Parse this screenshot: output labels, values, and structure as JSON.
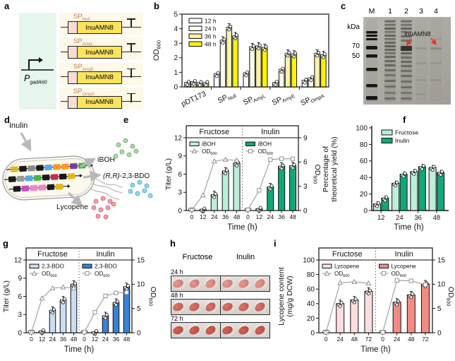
{
  "figure": {
    "panels": {
      "a": "a",
      "b": "b",
      "c": "c",
      "d": "d",
      "e": "e",
      "f": "f",
      "g": "g",
      "h": "h",
      "i": "i"
    }
  },
  "panel_a": {
    "promoter_main": "P",
    "promoter_sub": "gadA60",
    "sp_main": "SP",
    "gene_label": "InuAMN8",
    "constructs": [
      {
        "sp_sub": "Null"
      },
      {
        "sp_sub": "AmyL"
      },
      {
        "sp_sub": "AmyE"
      },
      {
        "sp_sub": "OmpA"
      }
    ]
  },
  "panel_c": {
    "kda_label": "kDa",
    "lane_labels": [
      "M",
      "1",
      "2",
      "3",
      "4"
    ],
    "marker_labels": [
      {
        "text": "70"
      },
      {
        "text": "50"
      }
    ],
    "annotation": "InuAMN8",
    "annotation_color": "#e8332a",
    "gel": {
      "lanes": [
        {
          "x": 12,
          "shade": "#161614",
          "smear": 0.05,
          "bands": [
            [
              20,
              3.5,
              1
            ],
            [
              25,
              3,
              1
            ],
            [
              30,
              3,
              1
            ],
            [
              41,
              5,
              1
            ],
            [
              53,
              4.5,
              1
            ],
            [
              72,
              4.5,
              1
            ],
            [
              95,
              4.5,
              1
            ],
            [
              112,
              5.5,
              1
            ]
          ]
        },
        {
          "x": 38,
          "shade": "#2e2d29",
          "smear": 0.1,
          "bands": [
            [
              5,
              2.5,
              0.5
            ],
            [
              10,
              2.5,
              0.45
            ],
            [
              15,
              3,
              0.55
            ],
            [
              20,
              2.5,
              0.4
            ],
            [
              25,
              3,
              0.5
            ],
            [
              30,
              2.5,
              0.45
            ],
            [
              35,
              3,
              0.5
            ],
            [
              40,
              3,
              0.55
            ],
            [
              45,
              3,
              0.5
            ],
            [
              50,
              2.5,
              0.45
            ],
            [
              55,
              3,
              0.5
            ],
            [
              61,
              3,
              0.45
            ],
            [
              67,
              3,
              0.5
            ],
            [
              74,
              3,
              0.45
            ],
            [
              81,
              3,
              0.4
            ],
            [
              89,
              3,
              0.45
            ],
            [
              97,
              3,
              0.4
            ],
            [
              106,
              3,
              0.35
            ],
            [
              114,
              3,
              0.4
            ]
          ]
        },
        {
          "x": 61,
          "shade": "#2e2d29",
          "smear": 0.1,
          "bands": [
            [
              5,
              2.5,
              0.45
            ],
            [
              10,
              2.5,
              0.4
            ],
            [
              15,
              3,
              0.5
            ],
            [
              20,
              2.5,
              0.4
            ],
            [
              26,
              3,
              0.45
            ],
            [
              32,
              3,
              0.4
            ],
            [
              41,
              7,
              0.95
            ],
            [
              50,
              3,
              0.5
            ],
            [
              56,
              3,
              0.45
            ],
            [
              62,
              3,
              0.5
            ],
            [
              68,
              3,
              0.45
            ],
            [
              75,
              3,
              0.4
            ],
            [
              82,
              3,
              0.45
            ],
            [
              90,
              3,
              0.4
            ],
            [
              98,
              3,
              0.4
            ],
            [
              106,
              3,
              0.35
            ],
            [
              114,
              3,
              0.4
            ]
          ]
        },
        {
          "x": 82,
          "shade": "#504f48",
          "smear": 0.04,
          "bands": [
            [
              43,
              3,
              0.18
            ],
            [
              64,
              3,
              0.15
            ],
            [
              88,
              3,
              0.15
            ],
            [
              108,
              3,
              0.12
            ]
          ]
        },
        {
          "x": 103,
          "shade": "#504f48",
          "smear": 0.04,
          "bands": [
            [
              30,
              2.5,
              0.15
            ],
            [
              43,
              3.5,
              0.28
            ],
            [
              64,
              3,
              0.15
            ],
            [
              88,
              3,
              0.15
            ]
          ]
        }
      ]
    }
  },
  "panel_d": {
    "input_label": "Inulin",
    "product1_label": "iBOH",
    "product2_italic": "(R,R)",
    "product2_rest": "-2,3-BDO",
    "product3_label": "Lycopene",
    "dots": {
      "green_fill": "#a9d9a4",
      "green_stroke": "#6aa865",
      "blue_fill": "#8ed6f0",
      "blue_stroke": "#4aa0c8",
      "pink_fill": "#f49aa8",
      "pink_stroke": "#d06070"
    },
    "gene_rows": [
      [
        "#e2b71e",
        "#1a1a1a",
        "#8a8a8a",
        "#1a1a1a",
        "#5aa8e8",
        "#f59a2a",
        "#f59a2a",
        "#7c3fa0",
        "#44b54a"
      ],
      [
        "#1a1a1a",
        "#9a9a9a",
        "#5aa8e8",
        "#44b54a",
        "#1a1a1a",
        "#c22a5a",
        "#1a1a1a",
        "#e2b71e"
      ],
      [
        "#1a1a1a",
        "#c84fc0",
        "#ef86c8",
        "#ef86c8",
        "#1a1a1a",
        "#e2b71e"
      ]
    ]
  },
  "panel_h": {
    "col_headers": [
      "Fructose",
      "Inulin"
    ],
    "rows": [
      {
        "label": "24 h",
        "hi": "#e09a93",
        "lo": "#cf6f68"
      },
      {
        "label": "48 h",
        "hi": "#d4766e",
        "lo": "#c05049"
      },
      {
        "label": "72 h",
        "hi": "#cc655c",
        "lo": "#b8423a"
      }
    ]
  },
  "chart_data": [
    {
      "id": "b",
      "type": "bar",
      "ylabel": {
        "main": "OD",
        "sub": "600"
      },
      "ylim": [
        0,
        5
      ],
      "yticks": [
        0,
        1,
        2,
        3,
        4,
        5
      ],
      "legend_position": "top-left inside",
      "grid": false,
      "frame": "box",
      "series": [
        {
          "name": "12 h",
          "color": "#ffffff"
        },
        {
          "name": "24 h",
          "color": "#fdfbe9"
        },
        {
          "name": "36 h",
          "color": "#f9f2ae"
        },
        {
          "name": "48 h",
          "color": "#fff200"
        }
      ],
      "categories": [
        {
          "main": "pDT173",
          "sub": ""
        },
        {
          "main": "SP",
          "sub": "Null"
        },
        {
          "main": "SP",
          "sub": "AmyL"
        },
        {
          "main": "SP",
          "sub": "AmyE"
        },
        {
          "main": "SP",
          "sub": "OmpA"
        }
      ],
      "values": [
        [
          0.3,
          0.35,
          0.28,
          0.28
        ],
        [
          0.9,
          3.2,
          4.1,
          3.5
        ],
        [
          0.95,
          2.75,
          2.8,
          2.7
        ],
        [
          0.3,
          1.2,
          2.3,
          2.25
        ],
        [
          0.45,
          0.62,
          2.3,
          2.2
        ]
      ]
    },
    {
      "id": "e",
      "type": "bar+line",
      "xlabel": "Time (h)",
      "x": [
        "0",
        "12",
        "24",
        "36",
        "48"
      ],
      "ylabel_lines": [
        "Titer (g/L)"
      ],
      "ylim": [
        0,
        12
      ],
      "yticks": [
        0,
        3,
        6,
        9,
        12
      ],
      "y2label": {
        "main": "OD",
        "sub": "600"
      },
      "y2lim": [
        0,
        9
      ],
      "y2ticks": [
        0,
        3,
        6,
        9
      ],
      "od_legend": {
        "main": "OD",
        "sub": "600"
      },
      "subpanels": [
        {
          "title": "Fructose",
          "bar_series": "iBOH",
          "bar_color": "#bceed8",
          "marker": "triangle",
          "bars": [
            0,
            0.2,
            2.6,
            6.5,
            7.8
          ],
          "od": [
            0.1,
            1.9,
            6.1,
            6.3,
            6.2
          ]
        },
        {
          "title": "Inulin",
          "bar_series": "iBOH",
          "bar_color": "#10a878",
          "marker": "square",
          "bars": [
            0,
            0.3,
            3.9,
            7.3,
            7.4
          ],
          "od": [
            0.1,
            2.5,
            6.3,
            6.4,
            6.4
          ]
        }
      ]
    },
    {
      "id": "f",
      "type": "bar",
      "xlabel": "Time (h)",
      "ylabel_lines": [
        "Percentage of",
        "theoretical yield (%)"
      ],
      "ylim": [
        0,
        100
      ],
      "yticks": [
        0,
        20,
        40,
        60,
        80,
        100
      ],
      "frame": "open",
      "series": [
        {
          "name": "Fructose",
          "color": "#bceed8"
        },
        {
          "name": "Inulin",
          "color": "#10a878"
        }
      ],
      "categories": [
        {
          "main": "12"
        },
        {
          "main": "24"
        },
        {
          "main": "36"
        },
        {
          "main": "48"
        }
      ],
      "values": [
        [
          8,
          15
        ],
        [
          33,
          44
        ],
        [
          47,
          53
        ],
        [
          52,
          46
        ]
      ]
    },
    {
      "id": "g",
      "type": "bar+line",
      "xlabel": "Time (h)",
      "x": [
        "0",
        "12",
        "24",
        "36",
        "48"
      ],
      "ylabel_lines": [
        "Titer (g/L)"
      ],
      "ylim": [
        0,
        12
      ],
      "yticks": [
        0,
        3,
        6,
        9,
        12
      ],
      "y2label": {
        "main": "OD",
        "sub": "600"
      },
      "y2lim": [
        0,
        15
      ],
      "y2ticks": [
        0,
        5,
        10,
        15
      ],
      "od_legend": {
        "main": "OD",
        "sub": "600"
      },
      "subpanels": [
        {
          "title": "Fructose",
          "bar_series": "2,3-BDO",
          "bar_color": "#c9ddf3",
          "marker": "triangle",
          "bars": [
            0,
            0.3,
            3.7,
            5.4,
            8.0
          ],
          "od": [
            0.1,
            7.1,
            9.2,
            9.4,
            9.2
          ]
        },
        {
          "title": "Inulin",
          "bar_series": "2,3-BDO",
          "bar_color": "#3b82d4",
          "marker": "square",
          "bars": [
            0,
            0.15,
            2.8,
            5.0,
            7.6
          ],
          "od": [
            0.1,
            4.2,
            7.6,
            8.2,
            8.3
          ]
        }
      ]
    },
    {
      "id": "i",
      "type": "bar+line",
      "xlabel": "Time (h)",
      "x": [
        "0",
        "24",
        "48",
        "72"
      ],
      "ylabel_lines": [
        "Lycopene content",
        "(mg/g DCW)"
      ],
      "ylim": [
        0,
        100
      ],
      "yticks": [
        0,
        20,
        40,
        60,
        80,
        100
      ],
      "y2label": {
        "main": "OD",
        "sub": "600"
      },
      "y2lim": [
        0,
        15
      ],
      "y2ticks": [
        0,
        5,
        10,
        15
      ],
      "od_legend": {
        "main": "OD",
        "sub": "600"
      },
      "subpanels": [
        {
          "title": "Fructose",
          "bar_series": "Lycopene",
          "bar_color": "#fadede",
          "marker": "triangle",
          "bars": [
            0,
            40,
            45,
            57
          ],
          "od": [
            0.1,
            10.3,
            10.5,
            10.2
          ]
        },
        {
          "title": "Inulin",
          "bar_series": "Lycopene",
          "bar_color": "#f28b82",
          "marker": "square",
          "bars": [
            0,
            42,
            52,
            67
          ],
          "od": [
            0.1,
            10.8,
            10.7,
            9.9
          ]
        }
      ]
    }
  ]
}
